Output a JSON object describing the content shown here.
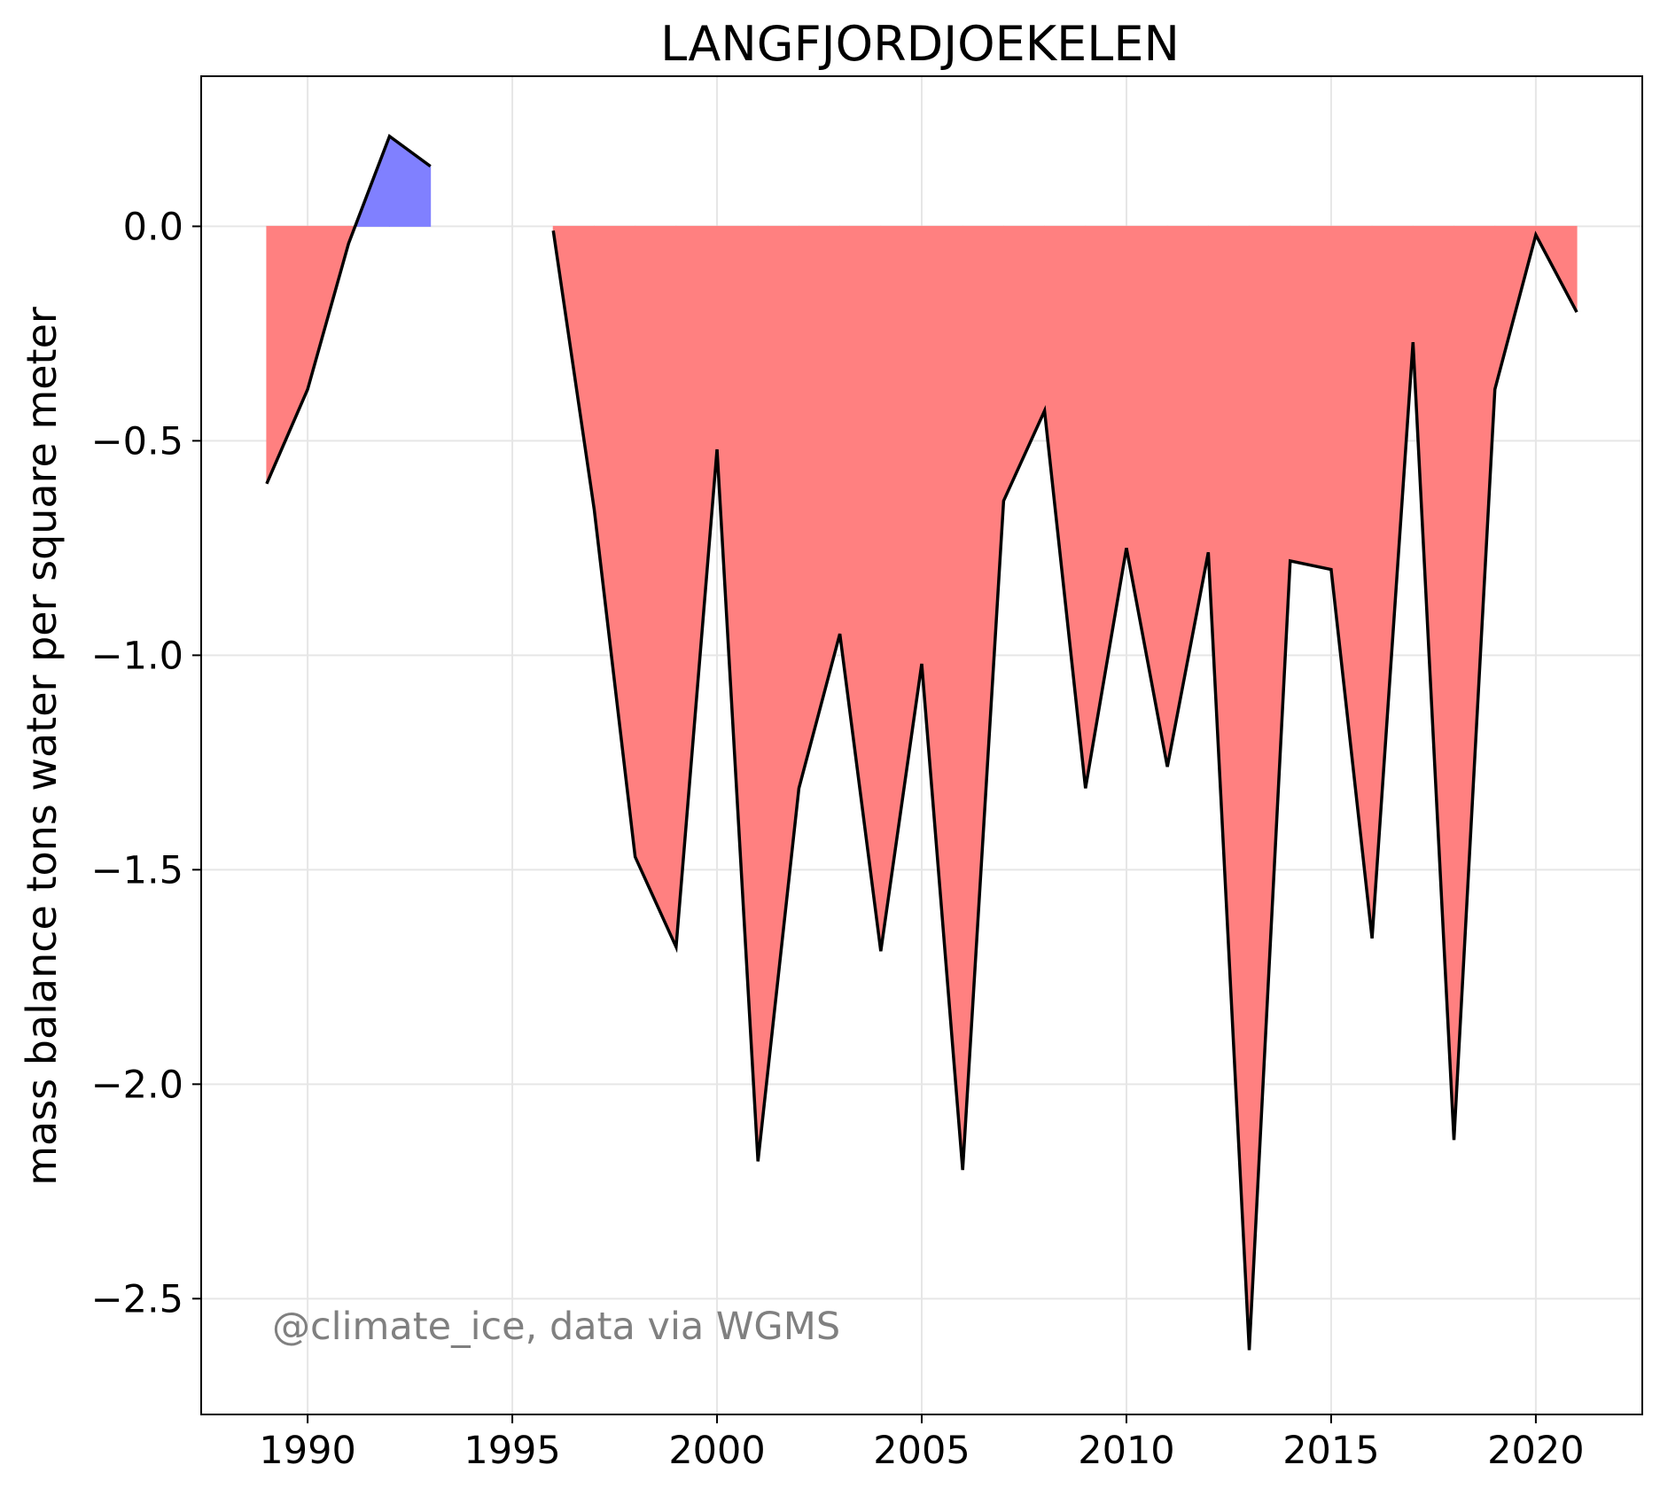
{
  "chart_data": {
    "type": "area",
    "title": "LANGFJORDJOEKELEN",
    "xlabel": "",
    "ylabel": "mass balance tons water per square meter",
    "watermark": "@climate_ice, data via WGMS",
    "xlim": [
      1987.4,
      2022.6
    ],
    "ylim": [
      -2.77,
      0.35
    ],
    "xticks": [
      1990,
      1995,
      2000,
      2005,
      2010,
      2015,
      2020
    ],
    "xtick_labels": [
      "1990",
      "1995",
      "2000",
      "2005",
      "2010",
      "2015",
      "2020"
    ],
    "yticks": [
      0.0,
      -0.5,
      -1.0,
      -1.5,
      -2.0,
      -2.5
    ],
    "ytick_labels": [
      "0.0",
      "−0.5",
      "−1.0",
      "−1.5",
      "−2.0",
      "−2.5"
    ],
    "grid": true,
    "segments": [
      {
        "x": [
          1989,
          1990,
          1991,
          1992,
          1993
        ],
        "y": [
          -0.6,
          -0.38,
          -0.04,
          0.21,
          0.14
        ]
      },
      {
        "x": [
          1996,
          1997,
          1998,
          1999,
          2000,
          2001,
          2002,
          2003,
          2004,
          2005,
          2006,
          2007,
          2008,
          2009,
          2010,
          2011,
          2012,
          2013,
          2014,
          2015,
          2016,
          2017,
          2018,
          2019,
          2020,
          2021
        ],
        "y": [
          -0.01,
          -0.66,
          -1.47,
          -1.68,
          -0.52,
          -2.18,
          -1.31,
          -0.95,
          -1.69,
          -1.02,
          -2.2,
          -0.64,
          -0.43,
          -1.31,
          -0.75,
          -1.26,
          -0.76,
          -2.62,
          -0.78,
          -0.8,
          -1.66,
          -0.27,
          -2.13,
          -0.38,
          -0.02,
          -0.2
        ]
      }
    ],
    "colors": {
      "negative_fill": "#ff8080",
      "positive_fill": "#8080ff",
      "line": "#000000",
      "grid": "#e6e6e6",
      "watermark": "#808080"
    }
  }
}
